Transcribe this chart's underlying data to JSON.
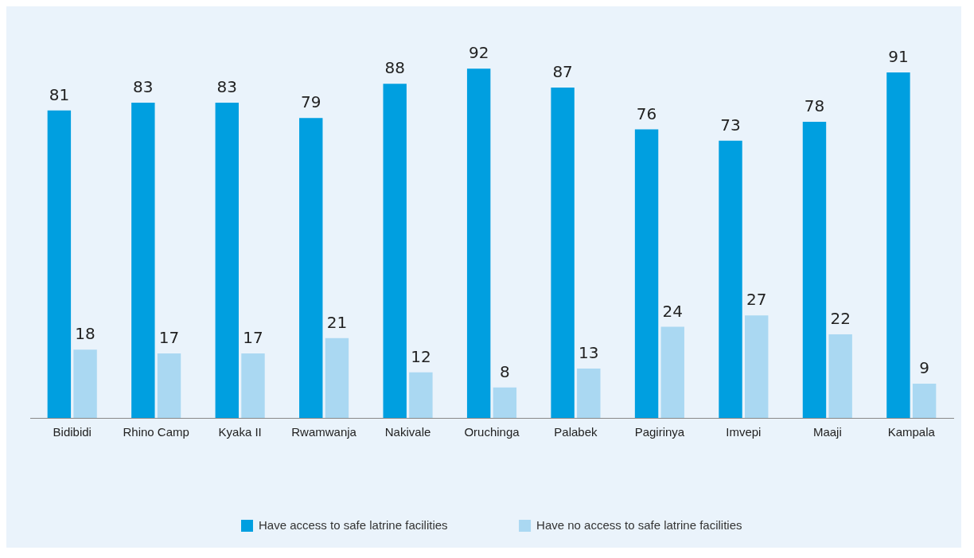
{
  "chart_data": {
    "type": "bar",
    "categories": [
      "Bidibidi",
      "Rhino Camp",
      "Kyaka II",
      "Rwamwanja",
      "Nakivale",
      "Oruchinga",
      "Palabek",
      "Pagirinya",
      "Imvepi",
      "Maaji",
      "Kampala"
    ],
    "series": [
      {
        "name": "Have access to safe latrine facilities",
        "color": "#009fe0",
        "values": [
          81,
          83,
          83,
          79,
          88,
          92,
          87,
          76,
          73,
          78,
          91
        ]
      },
      {
        "name": "Have no access to safe latrine facilities",
        "color": "#aad8f2",
        "values": [
          18,
          17,
          17,
          21,
          12,
          8,
          13,
          24,
          27,
          22,
          9
        ]
      }
    ],
    "data_labels": true,
    "grid": false,
    "legend": "bottom",
    "tick_labels": "x"
  }
}
